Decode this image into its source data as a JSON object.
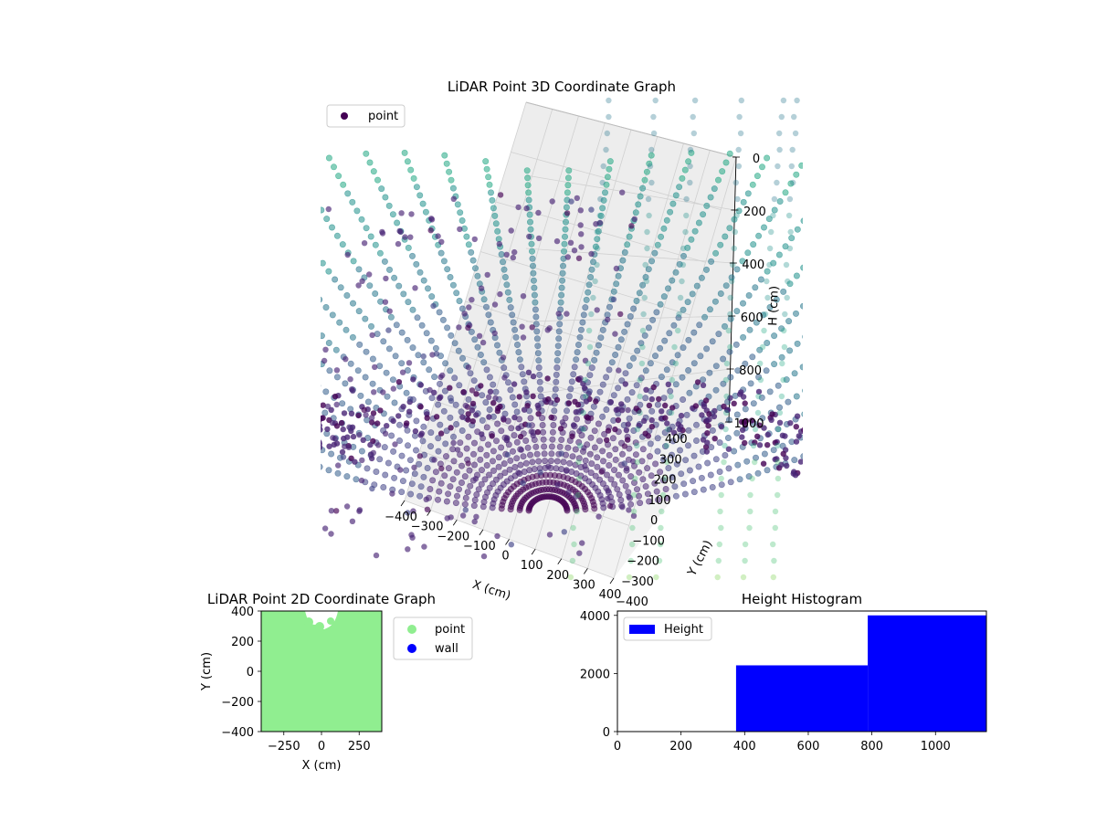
{
  "colors": {
    "point_3d_legend": "#440154",
    "viridis_dark": "#440154",
    "viridis_mid": "#3b528b",
    "viridis_light": "#5ec962",
    "point_2d": "#90ee90",
    "wall": "#0000ff",
    "hist": "#0000ff"
  },
  "chart_data": [
    {
      "type": "scatter",
      "title": "LiDAR Point 3D Coordinate Graph",
      "xlabel": "X (cm)",
      "ylabel": "Y (cm)",
      "zlabel": "H (cm)",
      "x_ticks": [
        "−400",
        "−300",
        "−200",
        "−100",
        "0",
        "100",
        "200",
        "300",
        "400"
      ],
      "y_ticks": [
        "−400",
        "−300",
        "−200",
        "−100",
        "0",
        "100",
        "200",
        "300",
        "400"
      ],
      "z_ticks": [
        "0",
        "200",
        "400",
        "600",
        "800",
        "1000"
      ],
      "xlim": [
        -400,
        400
      ],
      "ylim": [
        -400,
        400
      ],
      "zlim": [
        0,
        1000
      ],
      "z_inverted": true,
      "legend": {
        "entries": [
          "point"
        ],
        "placement": "upper-left"
      },
      "colormap": "viridis",
      "series": [
        {
          "name": "point",
          "description": "radial fan of ~30 scan lines forming a bowl; dense purple points near floor, outliers scattered, green-teal points on the right edge"
        }
      ]
    },
    {
      "type": "scatter",
      "title": "LiDAR Point 2D Coordinate Graph",
      "xlabel": "X (cm)",
      "ylabel": "Y (cm)",
      "x_ticks": [
        "−250",
        "0",
        "250"
      ],
      "y_ticks": [
        "−400",
        "−200",
        "0",
        "200",
        "400"
      ],
      "xlim": [
        -400,
        400
      ],
      "ylim": [
        -400,
        400
      ],
      "legend": {
        "entries": [
          "point",
          "wall"
        ],
        "placement": "outside-right"
      },
      "series": [
        {
          "name": "point",
          "description": "fills nearly the whole square except a notch at top center"
        },
        {
          "name": "wall",
          "values": []
        }
      ]
    },
    {
      "type": "bar",
      "title": "Height Histogram",
      "legend": {
        "entries": [
          "Height"
        ],
        "placement": "upper-left"
      },
      "x_ticks": [
        "0",
        "200",
        "400",
        "600",
        "800",
        "1000"
      ],
      "y_ticks": [
        "0",
        "2000",
        "4000"
      ],
      "xlim": [
        0,
        1160
      ],
      "ylim": [
        0,
        4150
      ],
      "bins": [
        {
          "x0": 0,
          "x1": 373,
          "value": 0
        },
        {
          "x0": 373,
          "x1": 787,
          "value": 2280
        },
        {
          "x0": 787,
          "x1": 1160,
          "value": 4000
        }
      ]
    }
  ]
}
